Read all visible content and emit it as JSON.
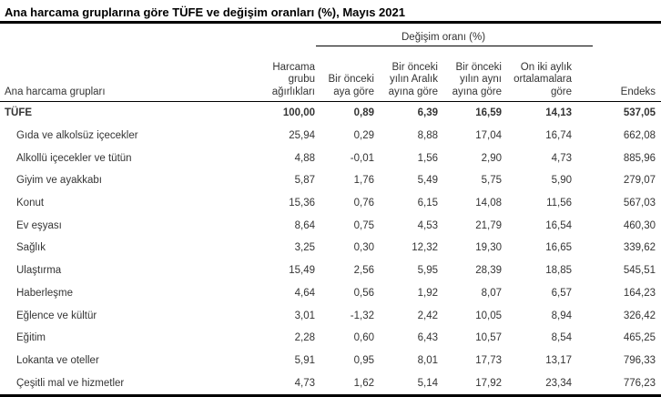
{
  "page": {
    "title": "Ana harcama gruplarına göre TÜFE ve değişim oranları (%), Mayıs 2021"
  },
  "chart_data": {
    "type": "table",
    "title": "Ana harcama gruplarına göre TÜFE ve değişim oranları (%), Mayıs 2021",
    "group_header": "Değişim oranı (%)",
    "group_header_spans_columns": [
      "Bir önceki aya göre",
      "Bir önceki yılın Aralık ayına göre",
      "Bir önceki yılın aynı ayına göre",
      "On iki aylık ortalamalara göre"
    ],
    "columns": [
      "Ana harcama grupları",
      "Harcama\ngrubu\nağırlıkları",
      "Bir önceki\naya göre",
      "Bir önceki\nyılın Aralık\nayına göre",
      "Bir önceki\nyılın aynı\nayına göre",
      "On iki aylık\nortalamalara\ngöre",
      "Endeks"
    ],
    "rows": [
      {
        "label": "TÜFE",
        "is_total": true,
        "values": [
          "100,00",
          "0,89",
          "6,39",
          "16,59",
          "14,13",
          "537,05"
        ]
      },
      {
        "label": "Gıda ve alkolsüz içecekler",
        "is_total": false,
        "values": [
          "25,94",
          "0,29",
          "8,88",
          "17,04",
          "16,74",
          "662,08"
        ]
      },
      {
        "label": "Alkollü içecekler ve tütün",
        "is_total": false,
        "values": [
          "4,88",
          "-0,01",
          "1,56",
          "2,90",
          "4,73",
          "885,96"
        ]
      },
      {
        "label": "Giyim ve ayakkabı",
        "is_total": false,
        "values": [
          "5,87",
          "1,76",
          "5,49",
          "5,75",
          "5,90",
          "279,07"
        ]
      },
      {
        "label": "Konut",
        "is_total": false,
        "values": [
          "15,36",
          "0,76",
          "6,15",
          "14,08",
          "11,56",
          "567,03"
        ]
      },
      {
        "label": "Ev eşyası",
        "is_total": false,
        "values": [
          "8,64",
          "0,75",
          "4,53",
          "21,79",
          "16,54",
          "460,30"
        ]
      },
      {
        "label": "Sağlık",
        "is_total": false,
        "values": [
          "3,25",
          "0,30",
          "12,32",
          "19,30",
          "16,65",
          "339,62"
        ]
      },
      {
        "label": "Ulaştırma",
        "is_total": false,
        "values": [
          "15,49",
          "2,56",
          "5,95",
          "28,39",
          "18,85",
          "545,51"
        ]
      },
      {
        "label": "Haberleşme",
        "is_total": false,
        "values": [
          "4,64",
          "0,56",
          "1,92",
          "8,07",
          "6,57",
          "164,23"
        ]
      },
      {
        "label": "Eğlence ve kültür",
        "is_total": false,
        "values": [
          "3,01",
          "-1,32",
          "2,42",
          "10,05",
          "8,94",
          "326,42"
        ]
      },
      {
        "label": "Eğitim",
        "is_total": false,
        "values": [
          "2,28",
          "0,60",
          "6,43",
          "10,57",
          "8,54",
          "465,25"
        ]
      },
      {
        "label": "Lokanta ve oteller",
        "is_total": false,
        "values": [
          "5,91",
          "0,95",
          "8,01",
          "17,73",
          "13,17",
          "796,33"
        ]
      },
      {
        "label": "Çeşitli mal ve hizmetler",
        "is_total": false,
        "values": [
          "4,73",
          "1,62",
          "5,14",
          "17,92",
          "23,34",
          "776,23"
        ]
      }
    ]
  },
  "colors": {
    "background": "#ffffff",
    "title_text": "#000000",
    "table_text": "#343434",
    "border": "#000000"
  }
}
